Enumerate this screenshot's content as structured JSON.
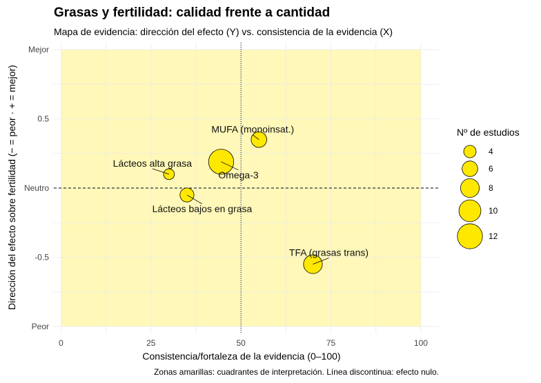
{
  "chart_data": {
    "type": "scatter",
    "title": "Grasas y fertilidad: calidad frente a cantidad",
    "subtitle": "Mapa de evidencia: dirección del efecto (Y) vs. consistencia de la evidencia (X)",
    "xlabel": "Consistencia/fortaleza de la evidencia (0–100)",
    "ylabel": "Dirección del efecto sobre fertilidad (− = peor · + = mejor)",
    "caption": "Zonas amarillas: cuadrantes de interpretación. Línea discontinua: efecto nulo.",
    "xlim": [
      -2,
      105
    ],
    "ylim": [
      -1.05,
      1.05
    ],
    "x_ticks": [
      {
        "value": 0,
        "label": "0"
      },
      {
        "value": 25,
        "label": "25"
      },
      {
        "value": 50,
        "label": "50"
      },
      {
        "value": 75,
        "label": "75"
      },
      {
        "value": 100,
        "label": "100"
      }
    ],
    "y_ticks": [
      {
        "value": -1,
        "label": "Peor"
      },
      {
        "value": -0.5,
        "label": "-0.5"
      },
      {
        "value": 0,
        "label": "Neutro"
      },
      {
        "value": 0.5,
        "label": "0.5"
      },
      {
        "value": 1,
        "label": "Mejor"
      }
    ],
    "grid": true,
    "reference_lines": {
      "horizontal_y": 0,
      "vertical_x": 50
    },
    "quadrants": {
      "x_range": [
        0,
        100
      ],
      "y_range": [
        -1,
        1
      ],
      "color": "#FFF8B8"
    },
    "point_color": "#FFE800",
    "size_legend": {
      "title": "Nº de estudios",
      "values": [
        4,
        6,
        8,
        10,
        12
      ],
      "labels": [
        "4",
        "6",
        "8",
        "10",
        "12"
      ],
      "placement": "right"
    },
    "points": [
      {
        "label": "MUFA (monoinsat.)",
        "x": 55,
        "y": 0.35,
        "studies": 6
      },
      {
        "label": "Omega-3",
        "x": 44.5,
        "y": 0.19,
        "studies": 12
      },
      {
        "label": "Lácteos alta grasa",
        "x": 30,
        "y": 0.1,
        "studies": 3
      },
      {
        "label": "Lácteos bajos en grasa",
        "x": 35,
        "y": -0.05,
        "studies": 5
      },
      {
        "label": "TFA (grasas trans)",
        "x": 70,
        "y": -0.55,
        "studies": 8
      }
    ]
  }
}
